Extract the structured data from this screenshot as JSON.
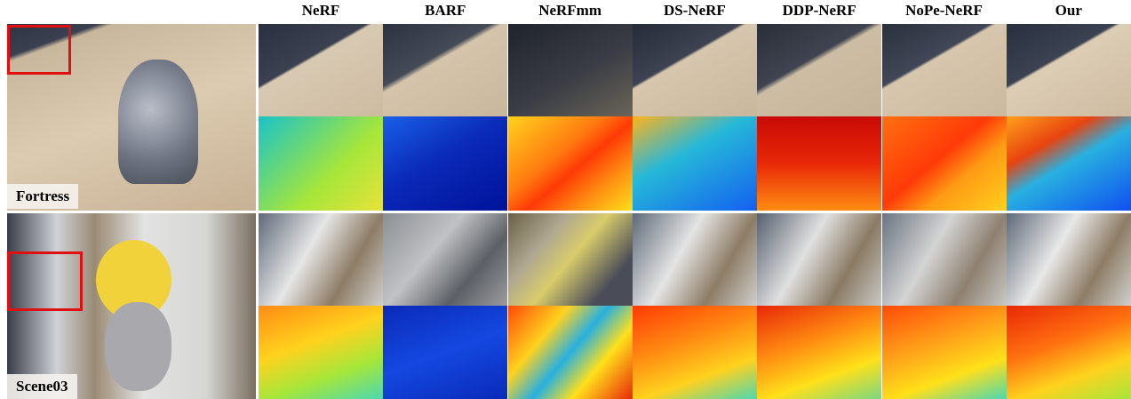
{
  "header": {
    "methods": [
      "NeRF",
      "BARF",
      "NeRFmm",
      "DS-NeRF",
      "DDP-NeRF",
      "NoPe-NeRF",
      "Our"
    ]
  },
  "scenes": [
    {
      "label": "Fortress"
    },
    {
      "label": "Scene03"
    }
  ]
}
